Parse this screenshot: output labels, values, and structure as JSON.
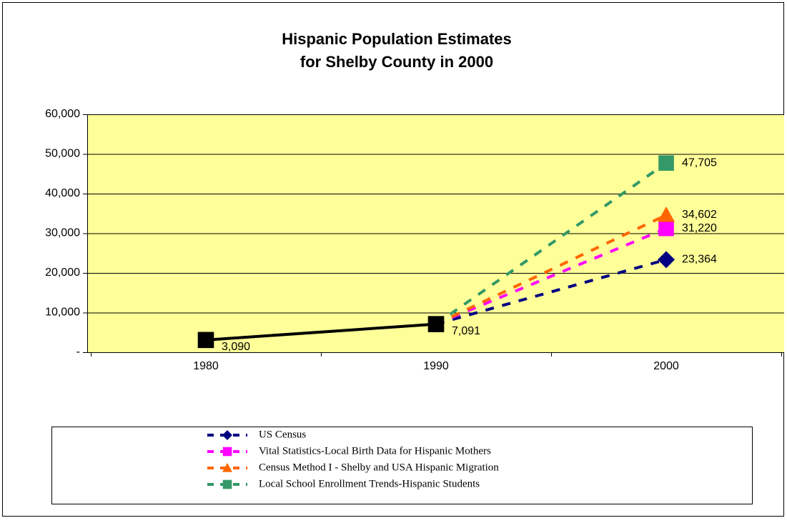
{
  "chart_data": {
    "type": "line",
    "title": [
      "Hispanic Population Estimates",
      "for Shelby County in 2000"
    ],
    "categories": [
      "1980",
      "1990",
      "2000"
    ],
    "ylim": [
      0,
      60000
    ],
    "yticks": [
      {
        "value": 0,
        "label": "-"
      },
      {
        "value": 10000,
        "label": "10,000"
      },
      {
        "value": 20000,
        "label": "20,000"
      },
      {
        "value": 30000,
        "label": "30,000"
      },
      {
        "value": 40000,
        "label": "40,000"
      },
      {
        "value": 50000,
        "label": "50,000"
      },
      {
        "value": 60000,
        "label": "60,000"
      }
    ],
    "grid": true,
    "background": "#ffff99",
    "legend": "bottom",
    "series": [
      {
        "name": "US Census",
        "color": "#000080",
        "marker": "diamond",
        "dashed": true,
        "values": [
          null,
          7091,
          23364
        ],
        "value_labels": [
          null,
          null,
          "23,364"
        ]
      },
      {
        "name": "Vital Statistics-Local Birth Data for Hispanic Mothers",
        "color": "#ff00ff",
        "marker": "square",
        "dashed": true,
        "values": [
          null,
          7091,
          31220
        ],
        "value_labels": [
          null,
          null,
          "31,220"
        ]
      },
      {
        "name": "Census Method I - Shelby and USA Hispanic Migration",
        "color": "#ff6600",
        "marker": "triangle",
        "dashed": true,
        "values": [
          null,
          7091,
          34602
        ],
        "value_labels": [
          null,
          null,
          "34,602"
        ]
      },
      {
        "name": "Local School Enrollment Trends-Hispanic Students",
        "color": "#339966",
        "marker": "square",
        "dashed": true,
        "values": [
          null,
          7091,
          47705
        ],
        "value_labels": [
          null,
          null,
          "47,705"
        ]
      },
      {
        "color": "#000000",
        "marker": "square",
        "dashed": false,
        "values": [
          3090,
          7091,
          null
        ],
        "value_labels": [
          "3,090",
          "7,091",
          null
        ]
      }
    ]
  }
}
